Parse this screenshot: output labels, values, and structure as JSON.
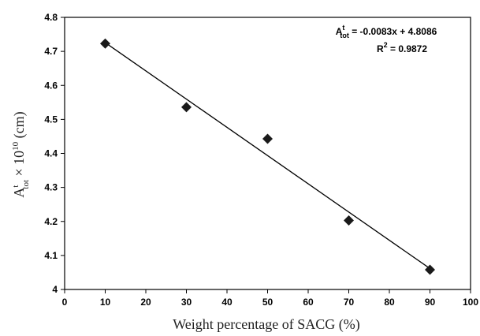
{
  "chart_data": {
    "type": "scatter",
    "x": [
      10,
      30,
      50,
      70,
      90
    ],
    "y": [
      4.723,
      4.536,
      4.443,
      4.203,
      4.058
    ],
    "xlim": [
      0,
      100
    ],
    "ylim": [
      4.0,
      4.8
    ],
    "xticks": [
      "0",
      "10",
      "20",
      "30",
      "40",
      "50",
      "60",
      "70",
      "80",
      "90",
      "100"
    ],
    "yticks": [
      "4",
      "4.1",
      "4.2",
      "4.3",
      "4.4",
      "4.5",
      "4.6",
      "4.7",
      "4.8"
    ],
    "xlabel": "Weight percentage of SACG (%)",
    "ylabel": {
      "base": "A",
      "sup": "t",
      "sub": "tot",
      "rest": " × 10",
      "exp": "10",
      "unit": " (cm)"
    },
    "trendline": {
      "slope": -0.0083,
      "intercept": 4.8086,
      "x_from": 10,
      "x_to": 90
    },
    "equation": {
      "base": "A",
      "sup": "t",
      "sub": "tot",
      "rhs": " = -0.0083x + 4.8086",
      "r2_base": "R",
      "r2_exp": "2",
      "r2_rhs": " = 0.9872"
    },
    "marker": "diamond",
    "marker_color": "#1a1a1a",
    "grid": false,
    "legend": "none"
  }
}
